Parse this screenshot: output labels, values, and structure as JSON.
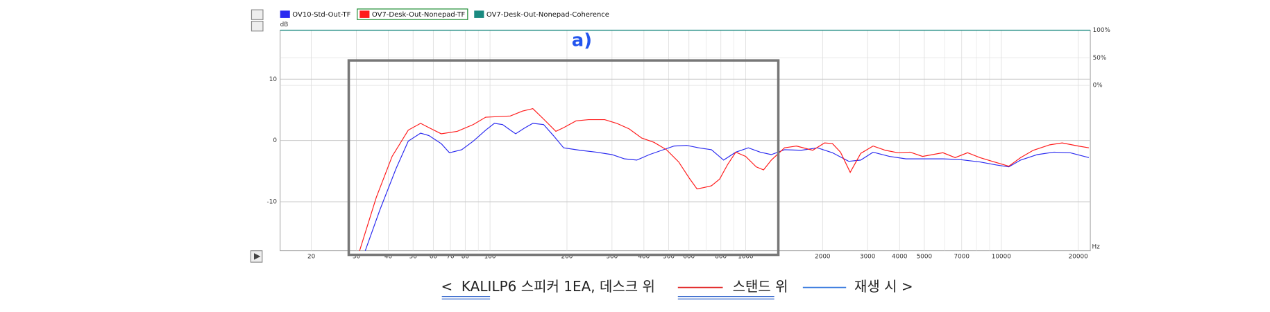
{
  "chart_data": {
    "type": "line",
    "x_label": "Hz",
    "y_label": "dB",
    "annotation": "a)",
    "log_x": true,
    "grid": true,
    "xlim": [
      15.1,
      22300
    ],
    "ylim": [
      -18,
      18
    ],
    "y2lim": [
      -300,
      100
    ],
    "xticks": [
      20,
      30,
      40,
      50,
      60,
      70,
      80,
      100,
      200,
      300,
      400,
      500,
      600,
      800,
      1000,
      2000,
      3000,
      4000,
      5000,
      7000,
      10000,
      20000
    ],
    "x_minor_ticks": [
      90,
      700,
      900,
      6000,
      8000,
      9000
    ],
    "yticks": [
      -10,
      0,
      10
    ],
    "y2ticks": [
      {
        "value": 0,
        "label": "0%"
      },
      {
        "value": 50,
        "label": "50%"
      },
      {
        "value": 100,
        "label": "100%"
      }
    ],
    "series": [
      {
        "name": "OV10-Std-Out-TF",
        "color": "#2a2af0",
        "x": [
          32.5,
          37.1,
          42.9,
          47.9,
          53.5,
          57.7,
          64.4,
          69.4,
          77.5,
          86,
          96.2,
          104,
          112,
          120,
          126,
          136,
          147,
          162,
          177,
          194,
          225,
          260,
          300,
          336,
          375,
          420,
          470,
          525,
          588,
          655,
          735,
          820,
          915,
          1025,
          1140,
          1260,
          1420,
          1650,
          1910,
          2185,
          2530,
          2820,
          3150,
          3650,
          4240,
          4920,
          5910,
          6850,
          8250,
          9570,
          10700,
          11900,
          13830,
          16060,
          18600,
          22000
        ],
        "values": [
          -18,
          -11.3,
          -4.6,
          -0.1,
          1.2,
          0.8,
          -0.5,
          -2.0,
          -1.5,
          -0.1,
          1.7,
          2.8,
          2.6,
          1.7,
          1.1,
          2.0,
          2.8,
          2.6,
          0.8,
          -1.2,
          -1.6,
          -1.9,
          -2.3,
          -3.0,
          -3.2,
          -2.3,
          -1.6,
          -0.9,
          -0.8,
          -1.2,
          -1.5,
          -3.2,
          -1.9,
          -1.2,
          -1.9,
          -2.3,
          -1.5,
          -1.6,
          -1.2,
          -2.0,
          -3.4,
          -3.2,
          -1.9,
          -2.6,
          -3.0,
          -3.0,
          -3.0,
          -3.1,
          -3.5,
          -4.0,
          -4.3,
          -3.2,
          -2.3,
          -1.9,
          -2.0,
          -2.8
        ]
      },
      {
        "name": "OV7-Desk-Out-Nonepad-TF",
        "color": "#ff1a1a",
        "x": [
          30.9,
          35.9,
          41.4,
          47.9,
          53.5,
          57.7,
          64.4,
          74.4,
          86,
          96.2,
          107.5,
          120,
          134,
          147,
          162,
          181,
          194,
          217,
          243,
          281,
          313,
          350,
          392,
          438,
          490,
          547,
          603,
          645,
          683,
          735,
          791,
          851,
          915,
          1000,
          1100,
          1175,
          1260,
          1420,
          1580,
          1830,
          2035,
          2185,
          2350,
          2565,
          2820,
          3150,
          3520,
          3940,
          4400,
          4920,
          5910,
          6600,
          7380,
          8250,
          9220,
          10700,
          11900,
          13330,
          15480,
          17300,
          20000,
          22000
        ],
        "values": [
          -18,
          -9.3,
          -2.6,
          1.7,
          2.8,
          2.1,
          1.1,
          1.5,
          2.6,
          3.8,
          3.9,
          4.0,
          4.8,
          5.2,
          3.5,
          1.5,
          2.1,
          3.2,
          3.4,
          3.4,
          2.8,
          1.9,
          0.4,
          -0.3,
          -1.5,
          -3.5,
          -6.2,
          -7.9,
          -7.7,
          -7.4,
          -6.3,
          -3.9,
          -1.9,
          -2.6,
          -4.3,
          -4.8,
          -3.2,
          -1.2,
          -0.9,
          -1.6,
          -0.4,
          -0.5,
          -1.9,
          -5.2,
          -2.1,
          -0.9,
          -1.6,
          -2.0,
          -1.9,
          -2.6,
          -2.0,
          -2.8,
          -2.0,
          -2.8,
          -3.4,
          -4.2,
          -2.8,
          -1.6,
          -0.7,
          -0.4,
          -0.9,
          -1.2
        ]
      },
      {
        "name": "OV7-Desk-Out-Nonepad-Coherence",
        "color": "#1a8a80",
        "axis": "y2",
        "x": [
          15.1,
          22300
        ],
        "values": [
          100,
          100
        ]
      }
    ]
  },
  "caption": {
    "open": "<",
    "brand": "KALI.",
    "desk": "LP6 스피커 1EA, 데스크 위",
    "stand": "스탠드 위",
    "close": "재생 시 >"
  }
}
